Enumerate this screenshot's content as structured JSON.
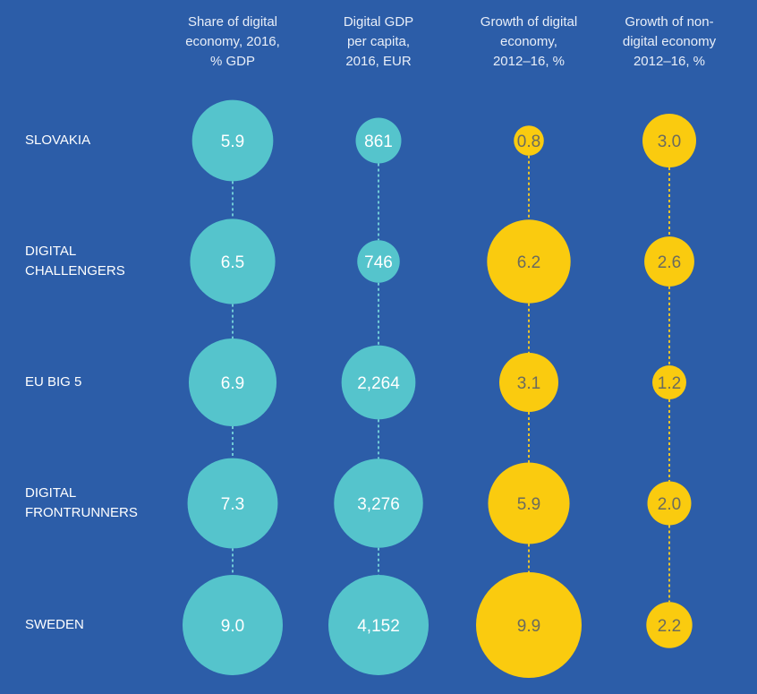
{
  "chart_data": {
    "type": "bubble-table",
    "columns": [
      {
        "header": "Share of digital\neconomy, 2016,\n% GDP",
        "color": "#55C4CC",
        "values": [
          5.9,
          6.5,
          6.9,
          7.3,
          9.0
        ],
        "labels": [
          "5.9",
          "6.5",
          "6.9",
          "7.3",
          "9.0"
        ]
      },
      {
        "header": "Digital GDP\nper capita,\n2016, EUR",
        "color": "#55C4CC",
        "values": [
          861,
          746,
          2264,
          3276,
          4152
        ],
        "labels": [
          "861",
          "746",
          "2,264",
          "3,276",
          "4,152"
        ]
      },
      {
        "header": "Growth of digital\neconomy,\n2012–16, %",
        "color": "#FACB0F",
        "values": [
          0.8,
          6.2,
          3.1,
          5.9,
          9.9
        ],
        "labels": [
          "0.8",
          "6.2",
          "3.1",
          "5.9",
          "9.9"
        ]
      },
      {
        "header": "Growth of non-\ndigital economy\n2012–16, %",
        "color": "#FACB0F",
        "values": [
          3.0,
          2.6,
          1.2,
          2.0,
          2.2
        ],
        "labels": [
          "3.0",
          "2.6",
          "1.2",
          "2.0",
          "2.2"
        ]
      }
    ],
    "rows": [
      "SLOVAKIA",
      "DIGITAL\nCHALLENGERS",
      "EU BIG 5",
      "DIGITAL\nFRONTRUNNERS",
      "SWEDEN"
    ]
  },
  "colors": {
    "background": "#2C5DA8",
    "teal": "#55C4CC",
    "yellow": "#FACB0F"
  }
}
